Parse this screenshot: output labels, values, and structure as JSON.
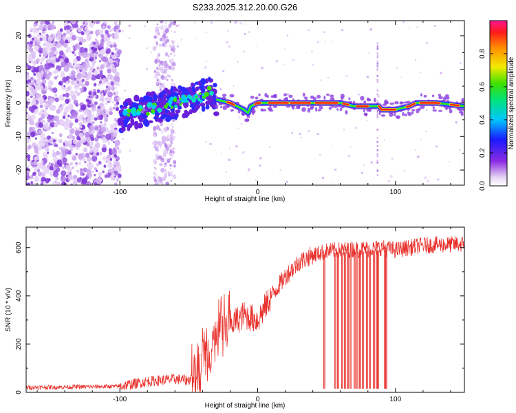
{
  "figure_title": "S233.2025.312.20.00.G26",
  "chart_data": [
    {
      "type": "heatmap",
      "panel": "top",
      "title": "",
      "xlabel": "Height of straight line (km)",
      "ylabel": "Frequency (Hz)",
      "xlim": [
        -168,
        150
      ],
      "ylim": [
        -24.5,
        24.5
      ],
      "xticks": [
        -100,
        0,
        100
      ],
      "xtick_labels": [
        "-100",
        "0",
        "100"
      ],
      "yticks": [
        -20,
        -10,
        0,
        10,
        20
      ],
      "ytick_labels": [
        "-20",
        "-10",
        "0",
        "10",
        "20"
      ],
      "colorbar": {
        "label": "Normalized spectral amplitude",
        "range": [
          0,
          1
        ],
        "ticks": [
          0,
          0.2,
          0.4,
          0.6,
          0.8
        ],
        "tick_labels": [
          "0.0",
          "0.2",
          "0.4",
          "0.6",
          "0.8"
        ],
        "colormap": "rainbow (white - purple - blue - cyan - green - yellow - orange - red - pink)"
      },
      "dominant_frequency_track": {
        "x": [
          -100,
          -90,
          -80,
          -70,
          -60,
          -50,
          -40,
          -35,
          -30,
          -20,
          -10,
          -7,
          -5,
          0,
          10,
          20,
          40,
          60,
          70,
          80,
          85,
          88,
          90,
          100,
          110,
          115,
          130,
          150
        ],
        "y": [
          -4,
          -3,
          -2,
          -1,
          0,
          1,
          2,
          3,
          1,
          0,
          -2,
          -3,
          -1,
          0,
          0,
          0,
          0,
          0,
          -1,
          -1,
          -1,
          -1,
          -2,
          -2,
          -1,
          0,
          0,
          -1
        ]
      },
      "noise_region_x": [
        -168,
        -100
      ],
      "noise_band_x": [
        -75,
        -60
      ],
      "vertical_streak_x": 87
    },
    {
      "type": "line",
      "panel": "bottom",
      "title": "",
      "xlabel": "Height of straight line (km)",
      "ylabel": "SNR (10 * v/v)",
      "xlim": [
        -168,
        150
      ],
      "ylim": [
        0,
        685
      ],
      "xticks": [
        -100,
        0,
        100
      ],
      "xtick_labels": [
        "-100",
        "0",
        "100"
      ],
      "yticks": [
        0,
        200,
        400,
        600
      ],
      "ytick_labels": [
        "0",
        "200",
        "400",
        "600"
      ],
      "series": [
        {
          "name": "SNR",
          "color": "#e8322d",
          "trend_x": [
            -168,
            -100,
            -80,
            -60,
            -50,
            -40,
            -30,
            -20,
            -10,
            0,
            10,
            20,
            30,
            40,
            50,
            60,
            80,
            90,
            100,
            120,
            150
          ],
          "trend_y": [
            20,
            25,
            45,
            55,
            50,
            120,
            220,
            280,
            320,
            300,
            400,
            480,
            540,
            570,
            585,
            590,
            595,
            600,
            590,
            610,
            615
          ],
          "dropout_x": [
            48,
            56,
            58,
            61,
            63,
            65,
            67,
            70,
            72,
            74,
            76,
            79,
            81,
            84,
            86,
            87,
            92,
            93
          ],
          "dropout_min": 15
        }
      ]
    }
  ]
}
